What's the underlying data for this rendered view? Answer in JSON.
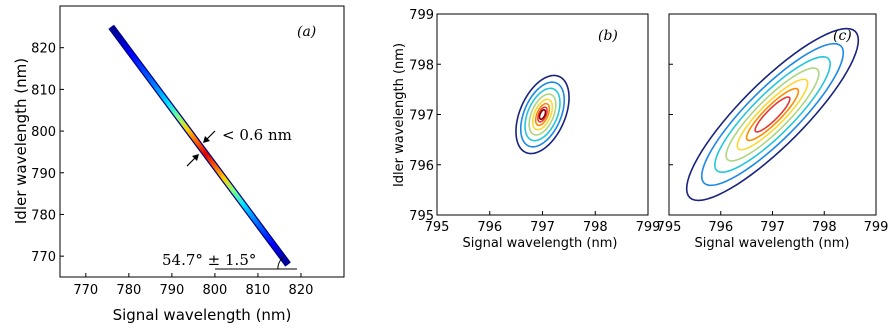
{
  "chart_data": [
    {
      "type": "line",
      "panel_label": "(a)",
      "xlabel": "Signal wavelength (nm)",
      "ylabel": "Idler wavelength (nm)",
      "xlim": [
        764,
        830
      ],
      "ylim": [
        765,
        830
      ],
      "xticks": [
        "770",
        "780",
        "790",
        "800",
        "810",
        "820"
      ],
      "yticks": [
        "770",
        "780",
        "790",
        "800",
        "810",
        "820"
      ],
      "xtick_values": [
        770,
        780,
        790,
        800,
        810,
        820
      ],
      "ytick_values": [
        770,
        780,
        790,
        800,
        810,
        820
      ],
      "series": [
        {
          "x": [
            775.9,
            817.0
          ],
          "y": [
            825.0,
            768.0
          ],
          "colormap": "jet, dark blue at the ends to dark red near the center (~797 nm)"
        }
      ],
      "annotations": {
        "width_label": "< 0.6 nm",
        "angle_label": "54.7° ± 1.5°"
      },
      "grid": false
    },
    {
      "type": "contour",
      "panel_label": "(b)",
      "xlabel": "Signal wavelength (nm)",
      "ylabel": "Idler wavelength (nm)",
      "xlim": [
        795,
        799
      ],
      "ylim": [
        795,
        799
      ],
      "xticks": [
        "795",
        "796",
        "797",
        "798",
        "799"
      ],
      "yticks": [
        "795",
        "796",
        "797",
        "798",
        "799"
      ],
      "tick_values": [
        795,
        796,
        797,
        798,
        799
      ],
      "center": [
        797.0,
        797.0
      ],
      "contours": [
        {
          "semi_major": 0.82,
          "semi_minor": 0.43,
          "tilt_deg": 22,
          "color": "#1a237e"
        },
        {
          "semi_major": 0.68,
          "semi_minor": 0.35,
          "tilt_deg": 22,
          "color": "#1e88e5"
        },
        {
          "semi_major": 0.55,
          "semi_minor": 0.28,
          "tilt_deg": 22,
          "color": "#26c6da"
        },
        {
          "semi_major": 0.43,
          "semi_minor": 0.21,
          "tilt_deg": 22,
          "color": "#aed581"
        },
        {
          "semi_major": 0.32,
          "semi_minor": 0.155,
          "tilt_deg": 22,
          "color": "#fdd835"
        },
        {
          "semi_major": 0.23,
          "semi_minor": 0.105,
          "tilt_deg": 22,
          "color": "#fb8c00"
        },
        {
          "semi_major": 0.155,
          "semi_minor": 0.07,
          "tilt_deg": 22,
          "color": "#e53935"
        },
        {
          "semi_major": 0.1,
          "semi_minor": 0.045,
          "tilt_deg": 22,
          "color": "#8b0000"
        }
      ],
      "grid": false
    },
    {
      "type": "contour",
      "panel_label": "(c)",
      "xlabel": "Signal wavelength (nm)",
      "ylabel": "",
      "xlim": [
        795,
        799
      ],
      "ylim": [
        795,
        799
      ],
      "xticks": [
        "795",
        "796",
        "797",
        "798",
        "799"
      ],
      "tick_values": [
        795,
        796,
        797,
        798,
        799
      ],
      "center": [
        797.0,
        797.0
      ],
      "contours": [
        {
          "semi_major": 2.3,
          "semi_minor": 0.62,
          "tilt_deg": 44,
          "color": "#1a237e"
        },
        {
          "semi_major": 1.9,
          "semi_minor": 0.5,
          "tilt_deg": 44,
          "color": "#1e88e5"
        },
        {
          "semi_major": 1.55,
          "semi_minor": 0.4,
          "tilt_deg": 44,
          "color": "#26c6da"
        },
        {
          "semi_major": 1.25,
          "semi_minor": 0.31,
          "tilt_deg": 44,
          "color": "#aed581"
        },
        {
          "semi_major": 0.95,
          "semi_minor": 0.23,
          "tilt_deg": 44,
          "color": "#fdd835"
        },
        {
          "semi_major": 0.7,
          "semi_minor": 0.165,
          "tilt_deg": 44,
          "color": "#fb8c00"
        },
        {
          "semi_major": 0.47,
          "semi_minor": 0.11,
          "tilt_deg": 44,
          "color": "#e53935"
        }
      ],
      "grid": false
    }
  ]
}
